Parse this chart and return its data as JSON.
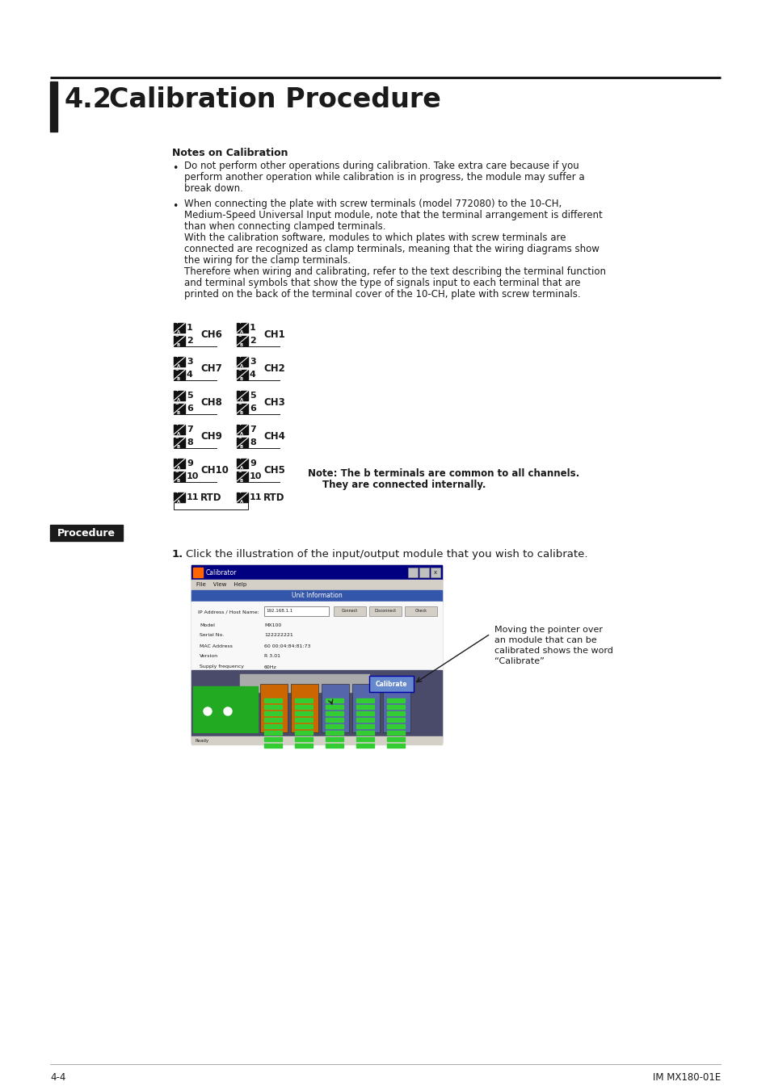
{
  "bg_color": "#ffffff",
  "title_section": "4.2",
  "title_text": "Calibration Procedure",
  "notes_heading": "Notes on Calibration",
  "bullet1_lines": [
    "Do not perform other operations during calibration. Take extra care because if you",
    "perform another operation while calibration is in progress, the module may suffer a",
    "break down."
  ],
  "bullet2_lines": [
    "When connecting the plate with screw terminals (model 772080) to the 10-CH,",
    "Medium-Speed Universal Input module, note that the terminal arrangement is different",
    "than when connecting clamped terminals.",
    "With the calibration software, modules to which plates with screw terminals are",
    "connected are recognized as clamp terminals, meaning that the wiring diagrams show",
    "the wiring for the clamp terminals.",
    "Therefore when wiring and calibrating, refer to the text describing the terminal function",
    "and terminal symbols that show the type of signals input to each terminal that are",
    "printed on the back of the terminal cover of the 10-CH, plate with screw terminals."
  ],
  "terminal_channels_left": [
    {
      "nums": [
        "1",
        "2"
      ],
      "ch": "CH6"
    },
    {
      "nums": [
        "3",
        "4"
      ],
      "ch": "CH7"
    },
    {
      "nums": [
        "5",
        "6"
      ],
      "ch": "CH8"
    },
    {
      "nums": [
        "7",
        "8"
      ],
      "ch": "CH9"
    },
    {
      "nums": [
        "9",
        "10"
      ],
      "ch": "CH10"
    },
    {
      "nums": [
        "11"
      ],
      "ch": "RTD"
    }
  ],
  "terminal_channels_right": [
    {
      "nums": [
        "1",
        "2"
      ],
      "ch": "CH1"
    },
    {
      "nums": [
        "3",
        "4"
      ],
      "ch": "CH2"
    },
    {
      "nums": [
        "5",
        "6"
      ],
      "ch": "CH3"
    },
    {
      "nums": [
        "7",
        "8"
      ],
      "ch": "CH4"
    },
    {
      "nums": [
        "9",
        "10"
      ],
      "ch": "CH5"
    },
    {
      "nums": [
        "11"
      ],
      "ch": "RTD"
    }
  ],
  "terminal_note_line1": "Note: The b terminals are common to all channels.",
  "terminal_note_line2": "They are connected internally.",
  "procedure_label": "Procedure",
  "procedure_step1": "Click the illustration of the input/output module that you wish to calibrate.",
  "screenshot_note_lines": [
    "Moving the pointer over",
    "an module that can be",
    "calibrated shows the word",
    "“Calibrate”"
  ],
  "footer_left": "4-4",
  "footer_right": "IM MX180-01E",
  "info_rows": [
    [
      "IP Address / Host Name:",
      "192.168.1.1"
    ],
    [
      "Model",
      "MX100"
    ],
    [
      "Serial No.",
      "122222221"
    ],
    [
      "MAC Address",
      "60 00:04:84:81:73"
    ],
    [
      "Version",
      "R 3.01"
    ],
    [
      "Supply frequency",
      "60Hz"
    ]
  ]
}
